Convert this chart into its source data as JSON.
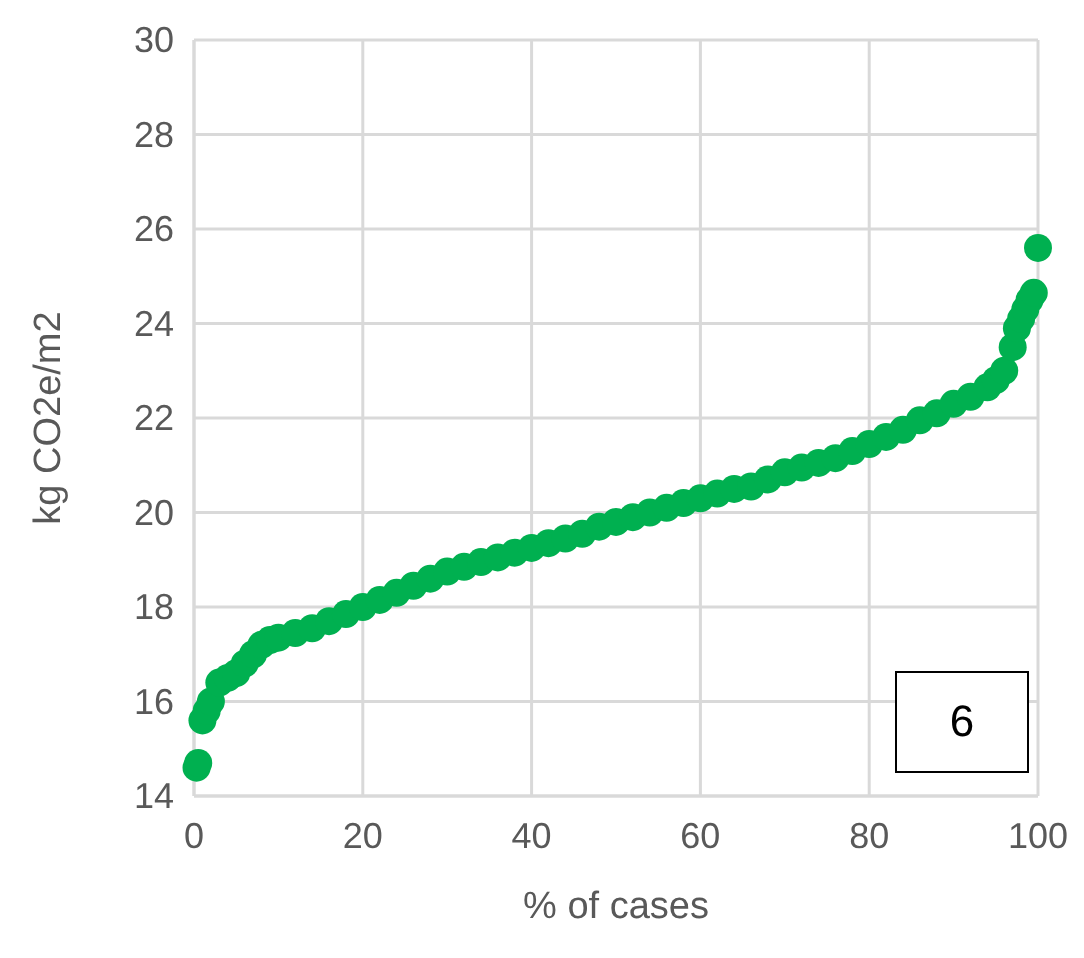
{
  "chart_data": {
    "type": "scatter",
    "xlabel": "% of cases",
    "ylabel": "kg CO2e/m2",
    "xlim": [
      0,
      100
    ],
    "xticks": [
      0,
      20,
      40,
      60,
      80,
      100
    ],
    "ylim": [
      14,
      30
    ],
    "yticks": [
      14,
      16,
      18,
      20,
      22,
      24,
      26,
      28,
      30
    ],
    "grid": true,
    "marker": "circle",
    "annotations": [
      "6"
    ],
    "series": [
      {
        "color": "#00b050",
        "x": [
          0.3,
          0.5,
          1,
          1.5,
          2,
          3,
          4,
          5,
          6,
          7,
          8,
          9,
          10,
          12,
          14,
          16,
          18,
          20,
          22,
          24,
          26,
          28,
          30,
          32,
          34,
          36,
          38,
          40,
          42,
          44,
          46,
          48,
          50,
          52,
          54,
          56,
          58,
          60,
          62,
          64,
          66,
          68,
          70,
          72,
          74,
          76,
          78,
          80,
          82,
          84,
          86,
          88,
          90,
          92,
          94,
          95,
          96,
          97,
          97.5,
          98,
          98.5,
          99,
          99.5,
          100
        ],
        "values": [
          14.6,
          14.7,
          15.6,
          15.8,
          16,
          16.4,
          16.5,
          16.6,
          16.8,
          17,
          17.2,
          17.3,
          17.35,
          17.45,
          17.55,
          17.7,
          17.85,
          18,
          18.15,
          18.3,
          18.45,
          18.6,
          18.75,
          18.85,
          18.95,
          19.05,
          19.15,
          19.25,
          19.35,
          19.45,
          19.55,
          19.7,
          19.8,
          19.9,
          20,
          20.1,
          20.2,
          20.3,
          20.4,
          20.5,
          20.55,
          20.7,
          20.85,
          20.95,
          21.05,
          21.15,
          21.3,
          21.45,
          21.6,
          21.75,
          21.95,
          22.1,
          22.3,
          22.45,
          22.65,
          22.8,
          23,
          23.5,
          23.9,
          24.1,
          24.3,
          24.5,
          24.65,
          25.6
        ]
      }
    ]
  }
}
